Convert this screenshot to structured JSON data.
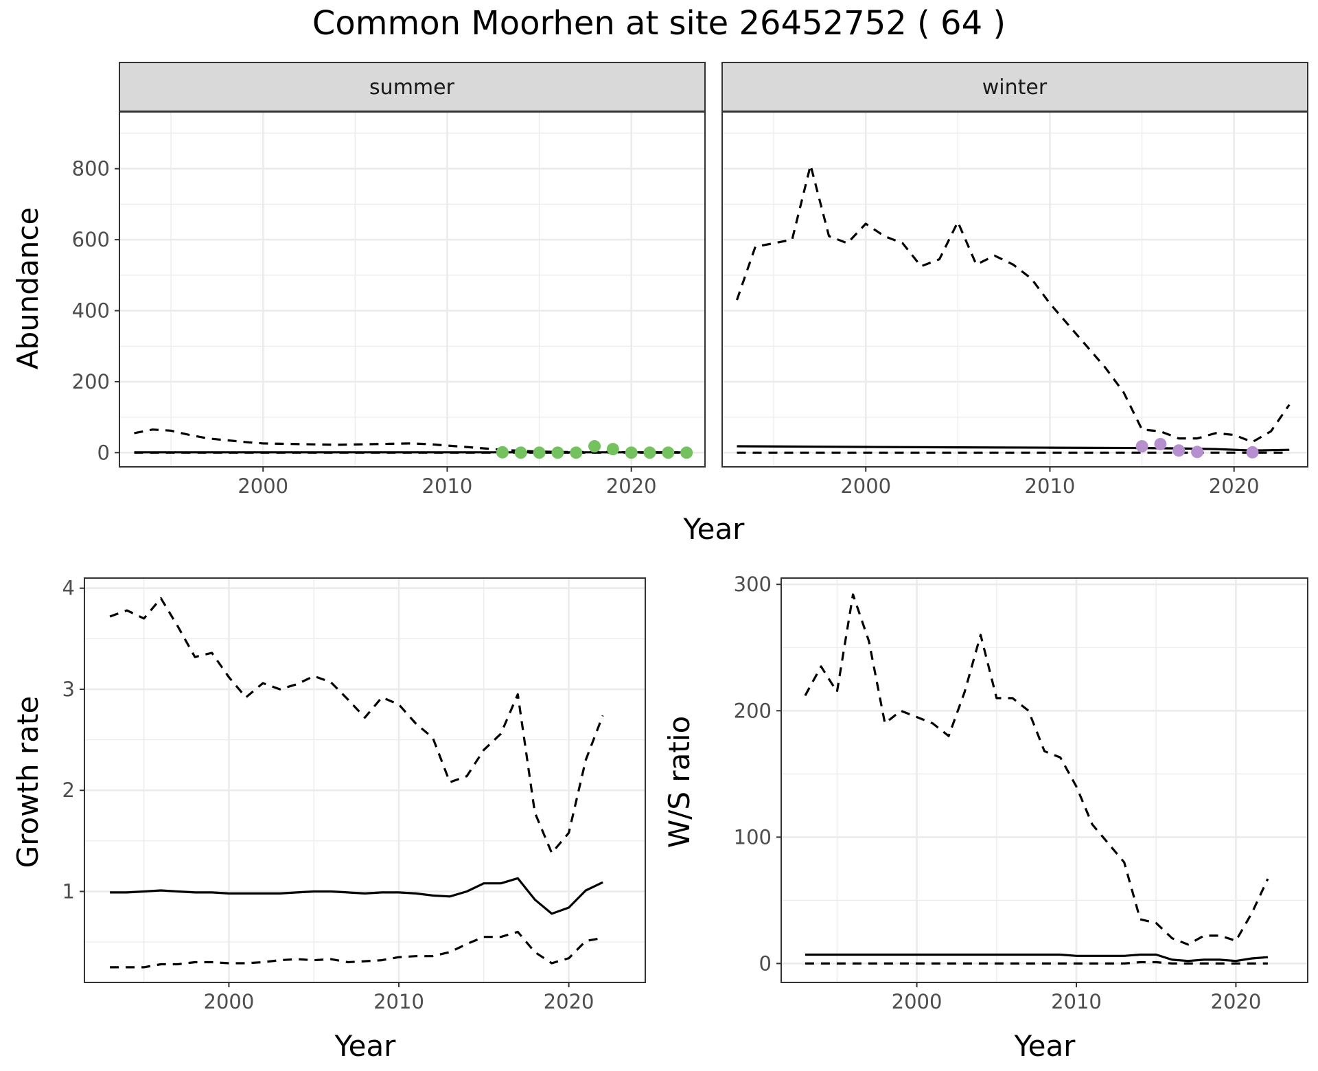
{
  "title": "Common Moorhen at site 26452752 ( 64 )",
  "colors": {
    "summer_points": "#74c15f",
    "winter_points": "#b58fce",
    "lines": "#000000",
    "strip_bg": "#d9d9d9",
    "grid": "#ebebeb",
    "panel_border": "#333333"
  },
  "chart_data": [
    {
      "id": "abundance",
      "type": "line",
      "facet_by": "season",
      "facets": [
        "summer",
        "winter"
      ],
      "shared_y_axis": true,
      "xlabel": "Year",
      "ylabel": "Abundance",
      "xlim": [
        1992.2,
        2024
      ],
      "ylim": [
        -40,
        960
      ],
      "x_ticks": [
        2000,
        2010,
        2020
      ],
      "y_ticks": [
        0,
        200,
        400,
        600,
        800
      ],
      "grid": true,
      "panels": [
        {
          "name": "summer",
          "lower": {
            "x": [
              1993,
              2023
            ],
            "y": [
              0,
              0
            ]
          },
          "estimate": {
            "x": [
              1993,
              2023
            ],
            "y": [
              1,
              1
            ]
          },
          "upper": {
            "x": [
              1993,
              1994,
              1995,
              1996,
              1997,
              1998,
              1999,
              2000,
              2001,
              2002,
              2003,
              2004,
              2005,
              2006,
              2007,
              2008,
              2009,
              2010,
              2011,
              2012,
              2013,
              2014,
              2015,
              2016,
              2017,
              2018,
              2019,
              2020,
              2021,
              2022,
              2023
            ],
            "y": [
              55,
              65,
              62,
              50,
              40,
              35,
              30,
              26,
              25,
              24,
              23,
              22,
              23,
              24,
              25,
              26,
              24,
              20,
              16,
              12,
              8,
              5,
              3,
              2,
              2,
              2,
              2,
              1,
              1,
              1,
              1
            ]
          },
          "points": {
            "x": [
              2013,
              2014,
              2015,
              2016,
              2017,
              2018,
              2019,
              2020,
              2021,
              2022,
              2023
            ],
            "y": [
              1,
              0,
              0,
              0,
              0,
              18,
              10,
              0,
              0,
              0,
              0
            ]
          }
        },
        {
          "name": "winter",
          "lower": {
            "x": [
              1993,
              2023
            ],
            "y": [
              0,
              0
            ]
          },
          "estimate": {
            "x": [
              1993,
              2000,
              2005,
              2010,
              2015,
              2017,
              2019,
              2021,
              2023
            ],
            "y": [
              18,
              16,
              15,
              14,
              13,
              12,
              10,
              6,
              8
            ]
          },
          "upper": {
            "x": [
              1993,
              1994,
              1995,
              1996,
              1997,
              1998,
              1999,
              2000,
              2001,
              2002,
              2003,
              2004,
              2005,
              2006,
              2007,
              2008,
              2009,
              2010,
              2011,
              2012,
              2013,
              2014,
              2015,
              2016,
              2017,
              2018,
              2019,
              2020,
              2021,
              2022,
              2023
            ],
            "y": [
              430,
              580,
              590,
              600,
              810,
              610,
              590,
              645,
              610,
              590,
              525,
              545,
              650,
              530,
              555,
              530,
              490,
              420,
              360,
              300,
              240,
              170,
              65,
              60,
              40,
              40,
              55,
              50,
              30,
              60,
              135
            ]
          },
          "points": {
            "x": [
              2015,
              2016,
              2017,
              2018,
              2021
            ],
            "y": [
              18,
              24,
              6,
              2,
              1
            ]
          }
        }
      ]
    },
    {
      "id": "growth_rate",
      "type": "line",
      "xlabel": "Year",
      "ylabel": "Growth rate",
      "xlim": [
        1991.5,
        2024.5
      ],
      "ylim": [
        0.1,
        4.1
      ],
      "x_ticks": [
        2000,
        2010,
        2020
      ],
      "y_ticks": [
        1,
        2,
        3,
        4
      ],
      "grid": true,
      "x": [
        1993,
        1994,
        1995,
        1996,
        1997,
        1998,
        1999,
        2000,
        2001,
        2002,
        2003,
        2004,
        2005,
        2006,
        2007,
        2008,
        2009,
        2010,
        2011,
        2012,
        2013,
        2014,
        2015,
        2016,
        2017,
        2018,
        2019,
        2020,
        2021,
        2022
      ],
      "series": [
        {
          "role": "upper",
          "values": [
            3.72,
            3.78,
            3.7,
            3.9,
            3.62,
            3.32,
            3.36,
            3.12,
            2.92,
            3.06,
            3.0,
            3.05,
            3.13,
            3.07,
            2.9,
            2.72,
            2.92,
            2.85,
            2.66,
            2.52,
            2.08,
            2.14,
            2.4,
            2.56,
            2.95,
            1.78,
            1.38,
            1.58,
            2.3,
            2.74
          ]
        },
        {
          "role": "estimate",
          "values": [
            0.99,
            0.99,
            1.0,
            1.01,
            1.0,
            0.99,
            0.99,
            0.98,
            0.98,
            0.98,
            0.98,
            0.99,
            1.0,
            1.0,
            0.99,
            0.98,
            0.99,
            0.99,
            0.98,
            0.96,
            0.95,
            1.0,
            1.08,
            1.08,
            1.13,
            0.92,
            0.78,
            0.84,
            1.01,
            1.09
          ]
        },
        {
          "role": "lower",
          "values": [
            0.25,
            0.25,
            0.25,
            0.28,
            0.28,
            0.3,
            0.3,
            0.29,
            0.29,
            0.3,
            0.32,
            0.33,
            0.32,
            0.33,
            0.3,
            0.31,
            0.32,
            0.35,
            0.36,
            0.36,
            0.4,
            0.48,
            0.55,
            0.55,
            0.6,
            0.4,
            0.29,
            0.34,
            0.51,
            0.54
          ]
        }
      ]
    },
    {
      "id": "ws_ratio",
      "type": "line",
      "xlabel": "Year",
      "ylabel": "W/S ratio",
      "xlim": [
        1991.5,
        2024.5
      ],
      "ylim": [
        -15,
        305
      ],
      "x_ticks": [
        2000,
        2010,
        2020
      ],
      "y_ticks": [
        0,
        100,
        200,
        300
      ],
      "grid": true,
      "x": [
        1993,
        1994,
        1995,
        1996,
        1997,
        1998,
        1999,
        2000,
        2001,
        2002,
        2003,
        2004,
        2005,
        2006,
        2007,
        2008,
        2009,
        2010,
        2011,
        2012,
        2013,
        2014,
        2015,
        2016,
        2017,
        2018,
        2019,
        2020,
        2021,
        2022
      ],
      "series": [
        {
          "role": "upper",
          "values": [
            212,
            235,
            215,
            292,
            255,
            190,
            200,
            195,
            190,
            180,
            215,
            260,
            210,
            210,
            200,
            168,
            163,
            140,
            110,
            95,
            80,
            35,
            32,
            20,
            15,
            22,
            22,
            18,
            40,
            67
          ]
        },
        {
          "role": "estimate",
          "values": [
            7,
            7,
            7,
            7,
            7,
            7,
            7,
            7,
            7,
            7,
            7,
            7,
            7,
            7,
            7,
            7,
            7,
            6,
            6,
            6,
            6,
            7,
            7,
            3,
            2,
            3,
            3,
            2,
            4,
            5
          ]
        },
        {
          "role": "lower",
          "values": [
            0,
            0,
            0,
            0,
            0,
            0,
            0,
            0,
            0,
            0,
            0,
            0,
            0,
            0,
            0,
            0,
            0,
            0,
            0,
            0,
            0,
            1,
            1,
            0,
            0,
            0,
            0,
            0,
            0,
            0
          ]
        }
      ]
    }
  ]
}
